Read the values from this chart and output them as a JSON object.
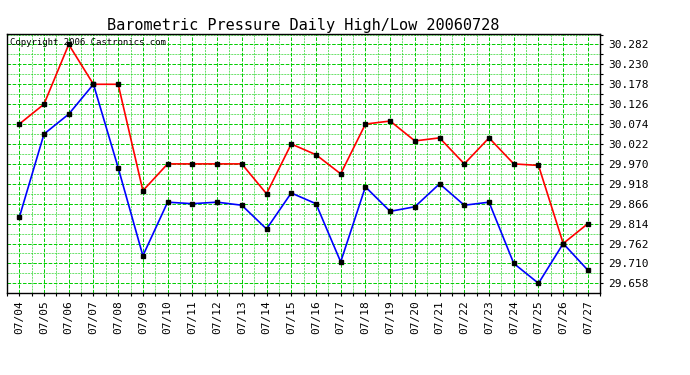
{
  "title": "Barometric Pressure Daily High/Low 20060728",
  "copyright": "Copyright 2006 Castronics.com",
  "dates": [
    "07/04",
    "07/05",
    "07/06",
    "07/07",
    "07/08",
    "07/09",
    "07/10",
    "07/11",
    "07/12",
    "07/13",
    "07/14",
    "07/15",
    "07/16",
    "07/17",
    "07/18",
    "07/19",
    "07/20",
    "07/21",
    "07/22",
    "07/23",
    "07/24",
    "07/25",
    "07/26",
    "07/27"
  ],
  "high": [
    30.074,
    30.126,
    30.282,
    30.178,
    30.178,
    29.9,
    29.97,
    29.97,
    29.97,
    29.97,
    29.892,
    30.022,
    29.994,
    29.944,
    30.074,
    30.082,
    30.03,
    30.038,
    29.97,
    30.038,
    29.97,
    29.966,
    29.762,
    29.814
  ],
  "low": [
    29.83,
    30.048,
    30.1,
    30.178,
    29.96,
    29.73,
    29.87,
    29.866,
    29.87,
    29.862,
    29.8,
    29.894,
    29.866,
    29.714,
    29.91,
    29.846,
    29.858,
    29.918,
    29.862,
    29.87,
    29.71,
    29.658,
    29.762,
    29.692
  ],
  "ylim_min": 29.634,
  "ylim_max": 30.31,
  "ytick_start": 29.658,
  "ytick_step": 0.052,
  "ytick_count": 13,
  "high_color": "#ff0000",
  "low_color": "#0000ff",
  "bg_color": "#ffffff",
  "grid_color": "#00cc00",
  "marker": "s",
  "marker_size": 3,
  "marker_color": "#000000",
  "line_width": 1.2,
  "title_fontsize": 11,
  "tick_fontsize": 8,
  "axis_bg": "#ffffff",
  "fig_width": 6.9,
  "fig_height": 3.75,
  "fig_dpi": 100
}
